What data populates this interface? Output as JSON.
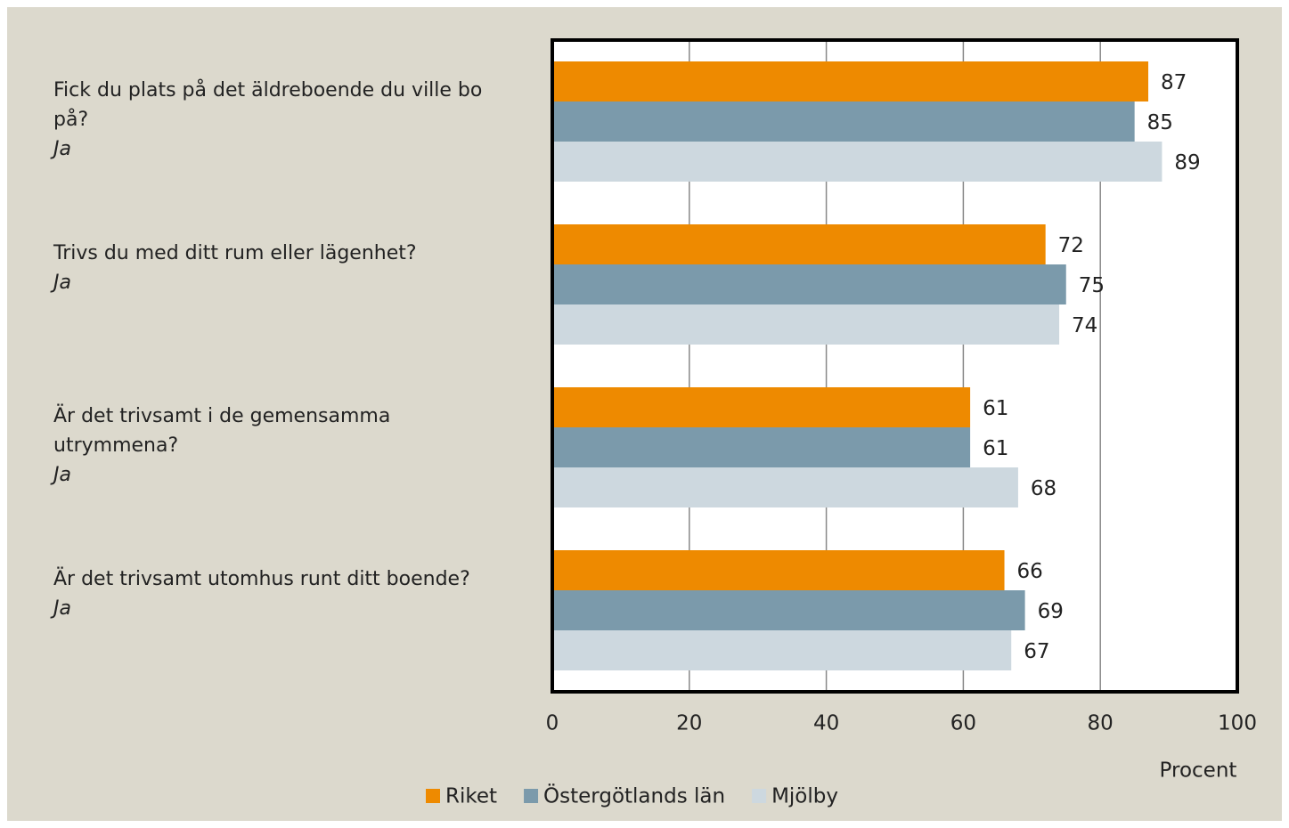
{
  "chart_data": {
    "type": "barh",
    "categories": [
      "Fick du plats på det äldreboende du ville bo på?",
      "Trivs du med ditt rum eller lägenhet?",
      "Är det trivsamt i de gemensamma utrymmena?",
      "Är det trivsamt utomhus runt ditt boende?"
    ],
    "category_notes": [
      "Ja",
      "Ja",
      "Ja",
      "Ja"
    ],
    "series": [
      {
        "name": "Riket",
        "color": "#ee8a00",
        "values": [
          87,
          72,
          61,
          66
        ]
      },
      {
        "name": "Östergötlands län",
        "color": "#7b9aab",
        "values": [
          85,
          75,
          61,
          69
        ]
      },
      {
        "name": "Mjölby",
        "color": "#cdd8df",
        "values": [
          89,
          74,
          68,
          67
        ]
      }
    ],
    "xlabel": "Procent",
    "xlim": [
      0,
      100
    ],
    "xticks": [
      0,
      20,
      40,
      60,
      80,
      100
    ],
    "grid": true,
    "legend": "bottom"
  }
}
